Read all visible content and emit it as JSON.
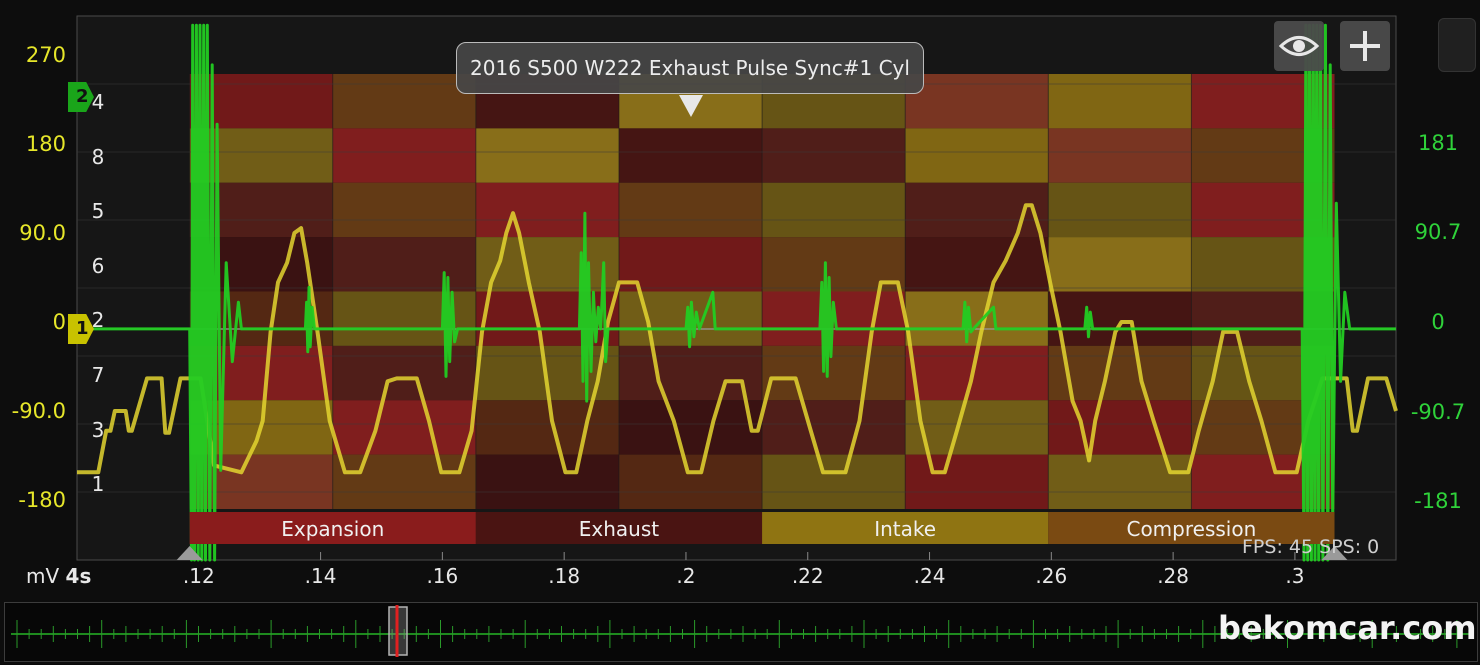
{
  "title": "2016 S500 W222 Exhaust Pulse Sync#1 Cyl",
  "status": {
    "fps": "FPS: 45",
    "sps": "SPS: 0"
  },
  "unit": "mV",
  "timebase": "4s",
  "watermark": "bekomcar.com",
  "markers": [
    {
      "label": "2",
      "color": "#1aa51a",
      "level": 270
    },
    {
      "label": "1",
      "color": "#c8c200",
      "level": 0
    }
  ],
  "buttons": {
    "visibility_icon": "eye-icon",
    "add_icon": "plus-icon"
  },
  "colors": {
    "ch1": "#e3d530",
    "ch2": "#22cc22",
    "background": "#0d0d0d",
    "expansion": "#8a1c1c",
    "exhaust": "#4a1412",
    "intake": "#8f7412",
    "compression": "#7a4a12"
  },
  "chart_data": {
    "type": "line",
    "title": "2016 S500 W222 Exhaust Pulse Sync#1 Cyl",
    "xlabel": "",
    "ylabel": "mV",
    "x_ticks": [
      ".12",
      ".14",
      ".16",
      ".18",
      ".2",
      ".22",
      ".24",
      ".26",
      ".28",
      ".3"
    ],
    "xlim": [
      0.1,
      0.3166
    ],
    "grid": true,
    "axes": {
      "left": {
        "ticks": [
          "270",
          "180",
          "90.0",
          "0",
          "-90.0",
          "-180"
        ],
        "ylim": [
          -270,
          270
        ]
      },
      "right": {
        "ticks": [
          "181",
          "90.7",
          "0",
          "-90.7",
          "-181"
        ],
        "ylim": [
          -273,
          273
        ]
      }
    },
    "cylinder_labels": [
      "4",
      "8",
      "5",
      "6",
      "2",
      "7",
      "3",
      "1"
    ],
    "phases": [
      {
        "label": "Expansion",
        "start": 0.1185,
        "end": 0.1655
      },
      {
        "label": "Exhaust",
        "start": 0.1655,
        "end": 0.2125
      },
      {
        "label": "Intake",
        "start": 0.2125,
        "end": 0.2595
      },
      {
        "label": "Compression",
        "start": 0.2595,
        "end": 0.3065
      }
    ],
    "series": [
      {
        "channel": "1",
        "axis": "left",
        "points": [
          [
            0.1,
            -152
          ],
          [
            0.1035,
            -152
          ],
          [
            0.1048,
            -110
          ],
          [
            0.1055,
            -110
          ],
          [
            0.1062,
            -90
          ],
          [
            0.108,
            -90
          ],
          [
            0.1085,
            -110
          ],
          [
            0.109,
            -110
          ],
          [
            0.1115,
            -57
          ],
          [
            0.1139,
            -57
          ],
          [
            0.1145,
            -112
          ],
          [
            0.1151,
            -112
          ],
          [
            0.117,
            -57
          ],
          [
            0.1203,
            -57
          ],
          [
            0.1225,
            -145
          ],
          [
            0.127,
            -152
          ],
          [
            0.1295,
            -120
          ],
          [
            0.1305,
            -100
          ],
          [
            0.1318,
            -10
          ],
          [
            0.133,
            40
          ],
          [
            0.1345,
            60
          ],
          [
            0.1357,
            90
          ],
          [
            0.1368,
            95
          ],
          [
            0.1378,
            60
          ],
          [
            0.1395,
            -10
          ],
          [
            0.1415,
            -100
          ],
          [
            0.144,
            -152
          ],
          [
            0.1465,
            -152
          ],
          [
            0.149,
            -110
          ],
          [
            0.151,
            -60
          ],
          [
            0.1525,
            -57
          ],
          [
            0.1558,
            -57
          ],
          [
            0.1578,
            -100
          ],
          [
            0.1598,
            -152
          ],
          [
            0.1628,
            -152
          ],
          [
            0.1648,
            -110
          ],
          [
            0.1665,
            -10
          ],
          [
            0.168,
            40
          ],
          [
            0.1695,
            62
          ],
          [
            0.1705,
            90
          ],
          [
            0.1716,
            110
          ],
          [
            0.1726,
            90
          ],
          [
            0.1742,
            40
          ],
          [
            0.176,
            -10
          ],
          [
            0.178,
            -100
          ],
          [
            0.1802,
            -152
          ],
          [
            0.182,
            -152
          ],
          [
            0.1838,
            -100
          ],
          [
            0.1855,
            -60
          ],
          [
            0.1872,
            0
          ],
          [
            0.189,
            40
          ],
          [
            0.192,
            40
          ],
          [
            0.1938,
            0
          ],
          [
            0.1955,
            -60
          ],
          [
            0.198,
            -100
          ],
          [
            0.2003,
            -152
          ],
          [
            0.2025,
            -152
          ],
          [
            0.2045,
            -100
          ],
          [
            0.2065,
            -60
          ],
          [
            0.2092,
            -60
          ],
          [
            0.2108,
            -110
          ],
          [
            0.2118,
            -110
          ],
          [
            0.214,
            -57
          ],
          [
            0.218,
            -57
          ],
          [
            0.2205,
            -110
          ],
          [
            0.2225,
            -152
          ],
          [
            0.2262,
            -152
          ],
          [
            0.2285,
            -100
          ],
          [
            0.2305,
            -10
          ],
          [
            0.232,
            40
          ],
          [
            0.2348,
            40
          ],
          [
            0.2365,
            -10
          ],
          [
            0.2385,
            -100
          ],
          [
            0.2405,
            -152
          ],
          [
            0.2425,
            -152
          ],
          [
            0.2445,
            -110
          ],
          [
            0.2468,
            -60
          ],
          [
            0.2485,
            -10
          ],
          [
            0.2505,
            40
          ],
          [
            0.2525,
            62
          ],
          [
            0.2545,
            90
          ],
          [
            0.2558,
            118
          ],
          [
            0.2568,
            118
          ],
          [
            0.2582,
            90
          ],
          [
            0.2598,
            40
          ],
          [
            0.2615,
            -10
          ],
          [
            0.2635,
            -80
          ],
          [
            0.2648,
            -100
          ],
          [
            0.2662,
            -140
          ],
          [
            0.2672,
            -100
          ],
          [
            0.2688,
            -60
          ],
          [
            0.2705,
            -10
          ],
          [
            0.2715,
            0
          ],
          [
            0.2732,
            0
          ],
          [
            0.2748,
            -60
          ],
          [
            0.2768,
            -100
          ],
          [
            0.2795,
            -152
          ],
          [
            0.2825,
            -152
          ],
          [
            0.2842,
            -110
          ],
          [
            0.2865,
            -60
          ],
          [
            0.2882,
            -10
          ],
          [
            0.2905,
            -10
          ],
          [
            0.2925,
            -60
          ],
          [
            0.2945,
            -100
          ],
          [
            0.2968,
            -152
          ],
          [
            0.3003,
            -152
          ],
          [
            0.3022,
            -100
          ],
          [
            0.3045,
            -57
          ],
          [
            0.3085,
            -57
          ],
          [
            0.3095,
            -110
          ],
          [
            0.3102,
            -110
          ],
          [
            0.312,
            -57
          ],
          [
            0.315,
            -57
          ],
          [
            0.3166,
            -90
          ]
        ]
      },
      {
        "channel": "2",
        "axis": "right",
        "baseline": -7,
        "points": [
          [
            0.1,
            -7
          ],
          [
            0.1185,
            -7
          ],
          [
            0.1188,
            -300
          ],
          [
            0.119,
            300
          ],
          [
            0.1193,
            -300
          ],
          [
            0.1196,
            300
          ],
          [
            0.1199,
            -300
          ],
          [
            0.1202,
            300
          ],
          [
            0.1205,
            -300
          ],
          [
            0.1208,
            300
          ],
          [
            0.1211,
            -300
          ],
          [
            0.1214,
            300
          ],
          [
            0.1218,
            -300
          ],
          [
            0.1222,
            260
          ],
          [
            0.1226,
            -260
          ],
          [
            0.123,
            200
          ],
          [
            0.1236,
            -150
          ],
          [
            0.1245,
            60
          ],
          [
            0.1255,
            -40
          ],
          [
            0.1265,
            20
          ],
          [
            0.127,
            -7
          ],
          [
            0.1375,
            -7
          ],
          [
            0.1377,
            20
          ],
          [
            0.1379,
            -30
          ],
          [
            0.1381,
            35
          ],
          [
            0.1383,
            -25
          ],
          [
            0.1386,
            15
          ],
          [
            0.139,
            -7
          ],
          [
            0.16,
            -7
          ],
          [
            0.1603,
            50
          ],
          [
            0.1606,
            -55
          ],
          [
            0.1609,
            45
          ],
          [
            0.1612,
            -40
          ],
          [
            0.1616,
            30
          ],
          [
            0.162,
            -20
          ],
          [
            0.1625,
            -7
          ],
          [
            0.1825,
            -7
          ],
          [
            0.1828,
            70
          ],
          [
            0.1831,
            -60
          ],
          [
            0.1834,
            110
          ],
          [
            0.1837,
            -80
          ],
          [
            0.184,
            60
          ],
          [
            0.1844,
            -50
          ],
          [
            0.1848,
            30
          ],
          [
            0.1852,
            -20
          ],
          [
            0.1856,
            15
          ],
          [
            0.186,
            -7
          ],
          [
            0.1865,
            60
          ],
          [
            0.1868,
            -40
          ],
          [
            0.1872,
            -7
          ],
          [
            0.2,
            -7
          ],
          [
            0.2003,
            15
          ],
          [
            0.2006,
            -25
          ],
          [
            0.2009,
            20
          ],
          [
            0.2013,
            -15
          ],
          [
            0.2017,
            10
          ],
          [
            0.2022,
            -7
          ],
          [
            0.2044,
            30
          ],
          [
            0.2048,
            -7
          ],
          [
            0.222,
            -7
          ],
          [
            0.2223,
            40
          ],
          [
            0.2226,
            -50
          ],
          [
            0.2229,
            60
          ],
          [
            0.2232,
            -55
          ],
          [
            0.2235,
            45
          ],
          [
            0.2238,
            -35
          ],
          [
            0.2242,
            20
          ],
          [
            0.2247,
            -7
          ],
          [
            0.2455,
            -7
          ],
          [
            0.2458,
            20
          ],
          [
            0.2461,
            -20
          ],
          [
            0.2464,
            15
          ],
          [
            0.2468,
            -10
          ],
          [
            0.2472,
            -7
          ],
          [
            0.2505,
            15
          ],
          [
            0.2509,
            -7
          ],
          [
            0.2655,
            -7
          ],
          [
            0.2658,
            15
          ],
          [
            0.2661,
            -15
          ],
          [
            0.2664,
            10
          ],
          [
            0.2668,
            -7
          ],
          [
            0.3012,
            -7
          ],
          [
            0.3015,
            -300
          ],
          [
            0.3018,
            300
          ],
          [
            0.3021,
            -300
          ],
          [
            0.3024,
            300
          ],
          [
            0.3027,
            -300
          ],
          [
            0.303,
            300
          ],
          [
            0.3033,
            -300
          ],
          [
            0.3036,
            300
          ],
          [
            0.3039,
            -300
          ],
          [
            0.3042,
            300
          ],
          [
            0.3046,
            -300
          ],
          [
            0.305,
            300
          ],
          [
            0.3054,
            -280
          ],
          [
            0.3058,
            260
          ],
          [
            0.3062,
            -200
          ],
          [
            0.3068,
            120
          ],
          [
            0.3075,
            -60
          ],
          [
            0.3082,
            30
          ],
          [
            0.309,
            -7
          ],
          [
            0.3166,
            -7
          ]
        ]
      }
    ]
  }
}
